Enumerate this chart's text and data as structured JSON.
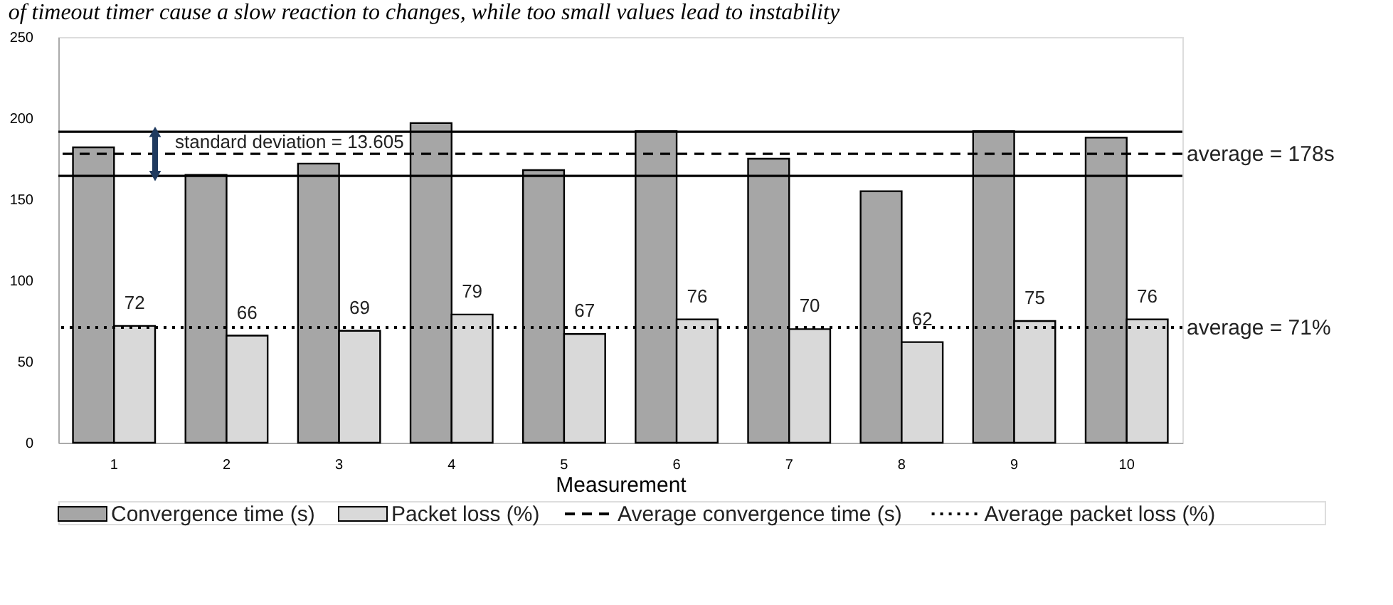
{
  "chart_data": {
    "type": "bar",
    "xlabel": "Measurement",
    "categories": [
      "1",
      "2",
      "3",
      "4",
      "5",
      "6",
      "7",
      "8",
      "9",
      "10"
    ],
    "series": [
      {
        "name": "Convergence time (s)",
        "color": "#a6a6a6",
        "values": [
          182,
          165,
          172,
          197,
          168,
          192,
          175,
          155,
          192,
          188
        ]
      },
      {
        "name": "Packet loss (%)",
        "color": "#d9d9d9",
        "values": [
          72,
          66,
          69,
          79,
          67,
          76,
          70,
          62,
          75,
          76
        ],
        "value_labels": [
          "72",
          "66",
          "69",
          "79",
          "67",
          "76",
          "70",
          "62",
          "75",
          "76"
        ]
      }
    ],
    "ylim": [
      0,
      250
    ],
    "yticks": [
      0,
      50,
      100,
      150,
      200,
      250
    ],
    "grid": false,
    "legend": "bottom",
    "ref_lines": [
      {
        "axis": "y",
        "value": 178,
        "label": "Average convergence time (s)",
        "color": "#000000",
        "line_style": "dashed"
      },
      {
        "axis": "y",
        "value": 71,
        "label": "Average packet loss (%)",
        "color": "#000000",
        "line_style": "dotted"
      },
      {
        "axis": "y",
        "value": 191.6,
        "color": "#000000",
        "line_style": "solid"
      },
      {
        "axis": "y",
        "value": 164.4,
        "color": "#000000",
        "line_style": "solid"
      }
    ],
    "annotations": [
      "of timeout timer cause a slow reaction to changes, while too small values lead to instability",
      {
        "text": "standard deviation = 13.605",
        "y": 178
      },
      "average = 178s",
      "average = 71%"
    ]
  }
}
